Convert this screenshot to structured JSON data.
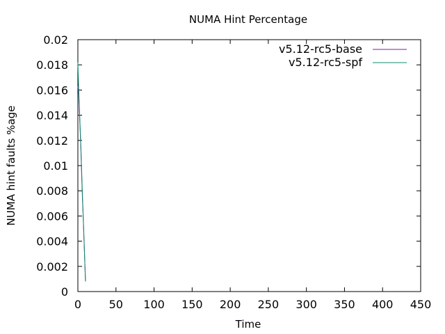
{
  "chart_data": {
    "type": "line",
    "title": "NUMA Hint Percentage",
    "xlabel": "Time",
    "ylabel": "NUMA hint faults %age",
    "xlim": [
      0,
      450
    ],
    "ylim": [
      0,
      0.02
    ],
    "x_ticks": [
      0,
      50,
      100,
      150,
      200,
      250,
      300,
      350,
      400,
      450
    ],
    "y_ticks": [
      0,
      0.002,
      0.004,
      0.006,
      0.008,
      0.01,
      0.012,
      0.014,
      0.016,
      0.018,
      0.02
    ],
    "x_tick_labels": [
      "0",
      "50",
      "100",
      "150",
      "200",
      "250",
      "300",
      "350",
      "400",
      "450"
    ],
    "y_tick_labels": [
      "0",
      "0.002",
      "0.004",
      "0.006",
      "0.008",
      "0.01",
      "0.012",
      "0.014",
      "0.016",
      "0.018",
      "0.02"
    ],
    "grid": false,
    "legend_position": "top-right",
    "series": [
      {
        "name": "v5.12-rc5-base",
        "color": "#7a1fa2",
        "x": [
          0,
          1,
          2,
          3,
          4,
          5,
          6,
          7,
          8,
          9,
          10
        ],
        "y": [
          0.0163,
          0.0158,
          0.0143,
          0.0128,
          0.0112,
          0.0092,
          0.0074,
          0.0059,
          0.0042,
          0.0025,
          0.0008
        ]
      },
      {
        "name": "v5.12-rc5-spf",
        "color": "#0d8a6c",
        "x": [
          0,
          1,
          2,
          3,
          4,
          5,
          6,
          7,
          8,
          9,
          10
        ],
        "y": [
          0.0182,
          0.0162,
          0.0146,
          0.013,
          0.0114,
          0.0095,
          0.0077,
          0.006,
          0.0043,
          0.0025,
          0.0008
        ]
      }
    ]
  }
}
